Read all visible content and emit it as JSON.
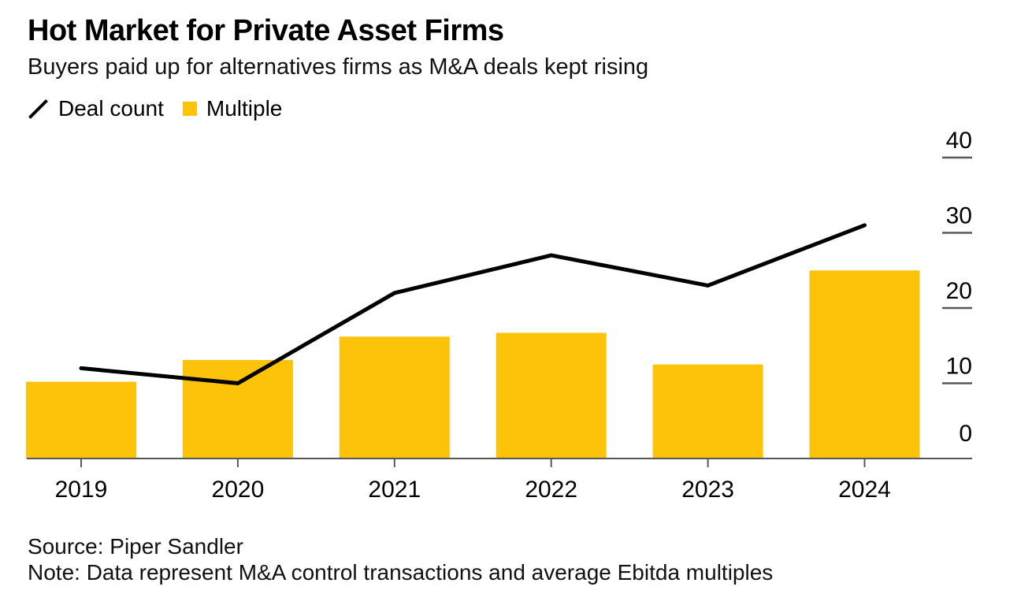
{
  "header": {
    "title": "Hot Market for Private Asset Firms",
    "subtitle": "Buyers paid up for alternatives firms as M&A deals kept rising"
  },
  "legend": {
    "deal_count_label": "Deal count",
    "multiple_label": "Multiple",
    "deal_count_icon": "diagonal-line-icon",
    "multiple_icon": "square-swatch-icon"
  },
  "footer": {
    "source": "Source: Piper Sandler",
    "note": "Note: Data represent M&A control transactions and average Ebitda multiples"
  },
  "colors": {
    "bar": "#FDC20A",
    "line": "#000000",
    "axis": "#58585A",
    "tick_label": "#000000"
  },
  "chart_data": {
    "type": "bar",
    "subtype": "bar-and-line-combo",
    "categories": [
      "2019",
      "2020",
      "2021",
      "2022",
      "2023",
      "2024"
    ],
    "series": [
      {
        "name": "Deal count",
        "type": "line",
        "color": "#000000",
        "values": [
          12,
          10,
          22,
          27,
          23,
          31
        ]
      },
      {
        "name": "Multiple",
        "type": "bar",
        "color": "#FDC20A",
        "values": [
          10.2,
          13.1,
          16.2,
          16.7,
          12.5,
          25
        ]
      }
    ],
    "title": "Hot Market for Private Asset Firms",
    "subtitle": "Buyers paid up for alternatives firms as M&A deals kept rising",
    "xlabel": "",
    "ylabel": "",
    "y_axis": {
      "side": "right",
      "ticks": [
        0,
        10,
        20,
        30,
        40
      ],
      "tick_labels": [
        "0",
        "10",
        "20",
        "30",
        "40"
      ],
      "range": [
        0,
        40
      ]
    },
    "grid": false,
    "legend_position": "top-left"
  }
}
